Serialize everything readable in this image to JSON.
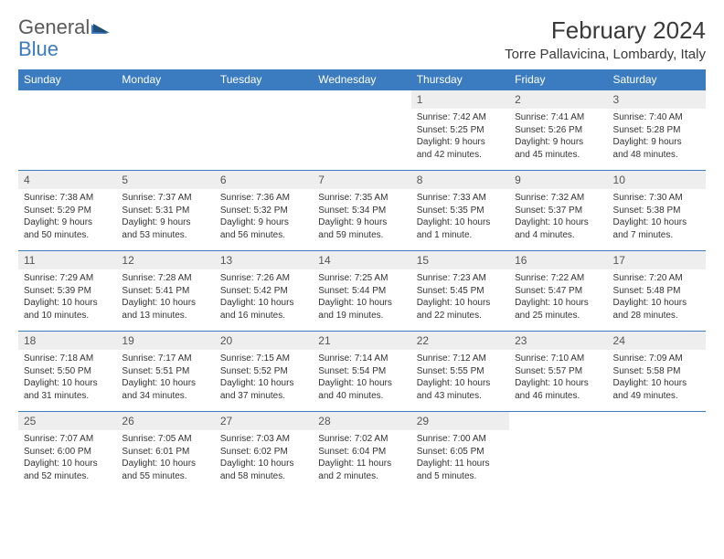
{
  "brand": {
    "word1": "General",
    "word2": "Blue"
  },
  "title": "February 2024",
  "location": "Torre Pallavicina, Lombardy, Italy",
  "colors": {
    "header_bg": "#3b7bbf",
    "header_text": "#ffffff",
    "daynum_bg": "#eeeeee",
    "border": "#3b7bbf",
    "body_text": "#333333",
    "logo_gray": "#5a5a5a",
    "logo_blue": "#3b7bbf"
  },
  "day_labels": [
    "Sunday",
    "Monday",
    "Tuesday",
    "Wednesday",
    "Thursday",
    "Friday",
    "Saturday"
  ],
  "weeks": [
    [
      null,
      null,
      null,
      null,
      {
        "n": "1",
        "sr": "Sunrise: 7:42 AM",
        "ss": "Sunset: 5:25 PM",
        "dl1": "Daylight: 9 hours",
        "dl2": "and 42 minutes."
      },
      {
        "n": "2",
        "sr": "Sunrise: 7:41 AM",
        "ss": "Sunset: 5:26 PM",
        "dl1": "Daylight: 9 hours",
        "dl2": "and 45 minutes."
      },
      {
        "n": "3",
        "sr": "Sunrise: 7:40 AM",
        "ss": "Sunset: 5:28 PM",
        "dl1": "Daylight: 9 hours",
        "dl2": "and 48 minutes."
      }
    ],
    [
      {
        "n": "4",
        "sr": "Sunrise: 7:38 AM",
        "ss": "Sunset: 5:29 PM",
        "dl1": "Daylight: 9 hours",
        "dl2": "and 50 minutes."
      },
      {
        "n": "5",
        "sr": "Sunrise: 7:37 AM",
        "ss": "Sunset: 5:31 PM",
        "dl1": "Daylight: 9 hours",
        "dl2": "and 53 minutes."
      },
      {
        "n": "6",
        "sr": "Sunrise: 7:36 AM",
        "ss": "Sunset: 5:32 PM",
        "dl1": "Daylight: 9 hours",
        "dl2": "and 56 minutes."
      },
      {
        "n": "7",
        "sr": "Sunrise: 7:35 AM",
        "ss": "Sunset: 5:34 PM",
        "dl1": "Daylight: 9 hours",
        "dl2": "and 59 minutes."
      },
      {
        "n": "8",
        "sr": "Sunrise: 7:33 AM",
        "ss": "Sunset: 5:35 PM",
        "dl1": "Daylight: 10 hours",
        "dl2": "and 1 minute."
      },
      {
        "n": "9",
        "sr": "Sunrise: 7:32 AM",
        "ss": "Sunset: 5:37 PM",
        "dl1": "Daylight: 10 hours",
        "dl2": "and 4 minutes."
      },
      {
        "n": "10",
        "sr": "Sunrise: 7:30 AM",
        "ss": "Sunset: 5:38 PM",
        "dl1": "Daylight: 10 hours",
        "dl2": "and 7 minutes."
      }
    ],
    [
      {
        "n": "11",
        "sr": "Sunrise: 7:29 AM",
        "ss": "Sunset: 5:39 PM",
        "dl1": "Daylight: 10 hours",
        "dl2": "and 10 minutes."
      },
      {
        "n": "12",
        "sr": "Sunrise: 7:28 AM",
        "ss": "Sunset: 5:41 PM",
        "dl1": "Daylight: 10 hours",
        "dl2": "and 13 minutes."
      },
      {
        "n": "13",
        "sr": "Sunrise: 7:26 AM",
        "ss": "Sunset: 5:42 PM",
        "dl1": "Daylight: 10 hours",
        "dl2": "and 16 minutes."
      },
      {
        "n": "14",
        "sr": "Sunrise: 7:25 AM",
        "ss": "Sunset: 5:44 PM",
        "dl1": "Daylight: 10 hours",
        "dl2": "and 19 minutes."
      },
      {
        "n": "15",
        "sr": "Sunrise: 7:23 AM",
        "ss": "Sunset: 5:45 PM",
        "dl1": "Daylight: 10 hours",
        "dl2": "and 22 minutes."
      },
      {
        "n": "16",
        "sr": "Sunrise: 7:22 AM",
        "ss": "Sunset: 5:47 PM",
        "dl1": "Daylight: 10 hours",
        "dl2": "and 25 minutes."
      },
      {
        "n": "17",
        "sr": "Sunrise: 7:20 AM",
        "ss": "Sunset: 5:48 PM",
        "dl1": "Daylight: 10 hours",
        "dl2": "and 28 minutes."
      }
    ],
    [
      {
        "n": "18",
        "sr": "Sunrise: 7:18 AM",
        "ss": "Sunset: 5:50 PM",
        "dl1": "Daylight: 10 hours",
        "dl2": "and 31 minutes."
      },
      {
        "n": "19",
        "sr": "Sunrise: 7:17 AM",
        "ss": "Sunset: 5:51 PM",
        "dl1": "Daylight: 10 hours",
        "dl2": "and 34 minutes."
      },
      {
        "n": "20",
        "sr": "Sunrise: 7:15 AM",
        "ss": "Sunset: 5:52 PM",
        "dl1": "Daylight: 10 hours",
        "dl2": "and 37 minutes."
      },
      {
        "n": "21",
        "sr": "Sunrise: 7:14 AM",
        "ss": "Sunset: 5:54 PM",
        "dl1": "Daylight: 10 hours",
        "dl2": "and 40 minutes."
      },
      {
        "n": "22",
        "sr": "Sunrise: 7:12 AM",
        "ss": "Sunset: 5:55 PM",
        "dl1": "Daylight: 10 hours",
        "dl2": "and 43 minutes."
      },
      {
        "n": "23",
        "sr": "Sunrise: 7:10 AM",
        "ss": "Sunset: 5:57 PM",
        "dl1": "Daylight: 10 hours",
        "dl2": "and 46 minutes."
      },
      {
        "n": "24",
        "sr": "Sunrise: 7:09 AM",
        "ss": "Sunset: 5:58 PM",
        "dl1": "Daylight: 10 hours",
        "dl2": "and 49 minutes."
      }
    ],
    [
      {
        "n": "25",
        "sr": "Sunrise: 7:07 AM",
        "ss": "Sunset: 6:00 PM",
        "dl1": "Daylight: 10 hours",
        "dl2": "and 52 minutes."
      },
      {
        "n": "26",
        "sr": "Sunrise: 7:05 AM",
        "ss": "Sunset: 6:01 PM",
        "dl1": "Daylight: 10 hours",
        "dl2": "and 55 minutes."
      },
      {
        "n": "27",
        "sr": "Sunrise: 7:03 AM",
        "ss": "Sunset: 6:02 PM",
        "dl1": "Daylight: 10 hours",
        "dl2": "and 58 minutes."
      },
      {
        "n": "28",
        "sr": "Sunrise: 7:02 AM",
        "ss": "Sunset: 6:04 PM",
        "dl1": "Daylight: 11 hours",
        "dl2": "and 2 minutes."
      },
      {
        "n": "29",
        "sr": "Sunrise: 7:00 AM",
        "ss": "Sunset: 6:05 PM",
        "dl1": "Daylight: 11 hours",
        "dl2": "and 5 minutes."
      },
      null,
      null
    ]
  ]
}
